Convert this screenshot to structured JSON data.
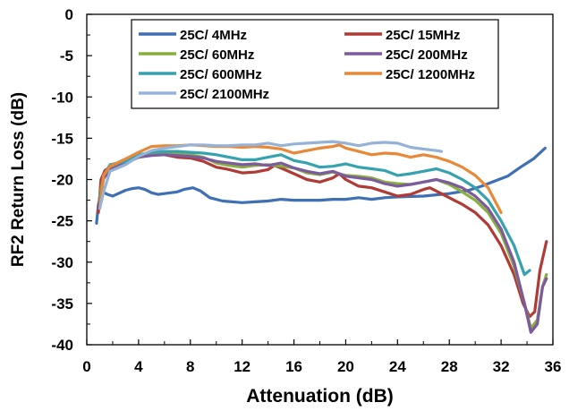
{
  "chart_data": {
    "type": "line",
    "xlabel": "Attenuation (dB)",
    "ylabel": "RF2 Return Loss (dB)",
    "xlim": [
      0,
      36
    ],
    "ylim": [
      -40,
      0
    ],
    "x_ticks": [
      "0",
      "4",
      "8",
      "12",
      "16",
      "20",
      "24",
      "28",
      "32",
      "36"
    ],
    "y_ticks": [
      "0",
      "-5",
      "-10",
      "-15",
      "-20",
      "-25",
      "-30",
      "-35",
      "-40"
    ],
    "grid": "none",
    "legend_position": "top-center",
    "series": [
      {
        "name": "25C/ 4MHz",
        "color": "#3F6FB5",
        "points": [
          [
            0.75,
            -25.3
          ],
          [
            0.9,
            -23.0
          ],
          [
            1.2,
            -21.5
          ],
          [
            1.6,
            -21.8
          ],
          [
            2,
            -22.0
          ],
          [
            3,
            -21.3
          ],
          [
            3.5,
            -21.1
          ],
          [
            4,
            -21.0
          ],
          [
            4.5,
            -21.2
          ],
          [
            5,
            -21.6
          ],
          [
            5.5,
            -21.8
          ],
          [
            6,
            -21.7
          ],
          [
            7,
            -21.5
          ],
          [
            7.5,
            -21.2
          ],
          [
            8.2,
            -21.0
          ],
          [
            8.8,
            -21.4
          ],
          [
            9.5,
            -22.2
          ],
          [
            10.5,
            -22.6
          ],
          [
            12,
            -22.8
          ],
          [
            13,
            -22.7
          ],
          [
            14,
            -22.6
          ],
          [
            15,
            -22.4
          ],
          [
            16,
            -22.5
          ],
          [
            18,
            -22.5
          ],
          [
            19,
            -22.4
          ],
          [
            20,
            -22.4
          ],
          [
            21,
            -22.2
          ],
          [
            22,
            -22.4
          ],
          [
            23,
            -22.2
          ],
          [
            24,
            -22.1
          ],
          [
            26,
            -22.0
          ],
          [
            28,
            -21.7
          ],
          [
            29.5,
            -21.3
          ],
          [
            30.5,
            -20.8
          ],
          [
            31.5,
            -20.2
          ],
          [
            32.5,
            -19.6
          ],
          [
            33.5,
            -18.5
          ],
          [
            34.5,
            -17.5
          ],
          [
            35.4,
            -16.2
          ]
        ]
      },
      {
        "name": "25C/ 15MHz",
        "color": "#B03A36",
        "points": [
          [
            0.9,
            -24.0
          ],
          [
            1.1,
            -20.0
          ],
          [
            1.4,
            -18.9
          ],
          [
            2,
            -18.3
          ],
          [
            3,
            -18.0
          ],
          [
            4,
            -17.3
          ],
          [
            5,
            -17.0
          ],
          [
            6,
            -17.0
          ],
          [
            7,
            -17.3
          ],
          [
            8,
            -17.4
          ],
          [
            9,
            -17.8
          ],
          [
            10,
            -18.5
          ],
          [
            11,
            -18.8
          ],
          [
            12,
            -19.2
          ],
          [
            13,
            -19.1
          ],
          [
            14,
            -18.8
          ],
          [
            14.5,
            -18.3
          ],
          [
            15,
            -18.6
          ],
          [
            16,
            -19.3
          ],
          [
            17,
            -20.0
          ],
          [
            18,
            -20.3
          ],
          [
            19,
            -19.8
          ],
          [
            19.5,
            -19.3
          ],
          [
            20,
            -20.0
          ],
          [
            21,
            -20.8
          ],
          [
            22,
            -21.0
          ],
          [
            23,
            -21.5
          ],
          [
            24,
            -22.0
          ],
          [
            25,
            -21.8
          ],
          [
            26,
            -21.2
          ],
          [
            26.5,
            -21.0
          ],
          [
            27,
            -21.4
          ],
          [
            28,
            -22.2
          ],
          [
            29,
            -23.0
          ],
          [
            30,
            -24.0
          ],
          [
            31,
            -25.5
          ],
          [
            32,
            -28.0
          ],
          [
            33,
            -31.5
          ],
          [
            33.7,
            -35.0
          ],
          [
            34.2,
            -36.6
          ],
          [
            34.6,
            -36.0
          ],
          [
            35,
            -31.0
          ],
          [
            35.5,
            -27.5
          ]
        ]
      },
      {
        "name": "25C/ 60MHz",
        "color": "#8AAE3E",
        "points": [
          [
            1.0,
            -22.0
          ],
          [
            1.3,
            -19.6
          ],
          [
            1.8,
            -18.6
          ],
          [
            3,
            -18.0
          ],
          [
            4,
            -17.3
          ],
          [
            5,
            -17.0
          ],
          [
            6,
            -16.9
          ],
          [
            7,
            -16.9
          ],
          [
            8,
            -17.0
          ],
          [
            9,
            -17.3
          ],
          [
            10,
            -18.0
          ],
          [
            11,
            -18.3
          ],
          [
            12,
            -18.5
          ],
          [
            13,
            -18.3
          ],
          [
            14,
            -18.2
          ],
          [
            15,
            -18.4
          ],
          [
            16,
            -18.6
          ],
          [
            17,
            -19.2
          ],
          [
            18,
            -19.4
          ],
          [
            19,
            -19.1
          ],
          [
            20,
            -19.5
          ],
          [
            21,
            -19.6
          ],
          [
            22,
            -19.8
          ],
          [
            23,
            -20.3
          ],
          [
            24,
            -20.5
          ],
          [
            25,
            -20.6
          ],
          [
            26,
            -20.3
          ],
          [
            27,
            -20.0
          ],
          [
            28,
            -20.6
          ],
          [
            29,
            -21.5
          ],
          [
            30,
            -22.5
          ],
          [
            31,
            -24.0
          ],
          [
            32,
            -26.5
          ],
          [
            33,
            -30.5
          ],
          [
            33.8,
            -35.0
          ],
          [
            34.3,
            -38.0
          ],
          [
            34.8,
            -37.0
          ],
          [
            35.2,
            -33.0
          ],
          [
            35.5,
            -31.5
          ]
        ]
      },
      {
        "name": "25C/ 200MHz",
        "color": "#7B5A9E",
        "points": [
          [
            1.0,
            -22.5
          ],
          [
            1.3,
            -19.9
          ],
          [
            1.8,
            -18.8
          ],
          [
            3,
            -18.0
          ],
          [
            4,
            -17.3
          ],
          [
            5,
            -17.1
          ],
          [
            6,
            -17.0
          ],
          [
            7,
            -17.1
          ],
          [
            8,
            -17.2
          ],
          [
            9,
            -17.4
          ],
          [
            10,
            -17.8
          ],
          [
            11,
            -18.0
          ],
          [
            12,
            -18.2
          ],
          [
            13,
            -18.1
          ],
          [
            14,
            -18.3
          ],
          [
            15,
            -18.0
          ],
          [
            16,
            -18.6
          ],
          [
            17,
            -19.0
          ],
          [
            18,
            -19.3
          ],
          [
            19,
            -19.0
          ],
          [
            20,
            -19.6
          ],
          [
            21,
            -19.8
          ],
          [
            22,
            -20.0
          ],
          [
            23,
            -20.5
          ],
          [
            24,
            -20.8
          ],
          [
            25,
            -20.6
          ],
          [
            26,
            -20.3
          ],
          [
            27,
            -20.0
          ],
          [
            28,
            -20.4
          ],
          [
            29,
            -21.0
          ],
          [
            30,
            -22.0
          ],
          [
            31,
            -23.5
          ],
          [
            32,
            -26.0
          ],
          [
            33,
            -30.0
          ],
          [
            33.8,
            -35.0
          ],
          [
            34.3,
            -38.5
          ],
          [
            34.8,
            -37.5
          ],
          [
            35.2,
            -33.0
          ],
          [
            35.5,
            -32.0
          ]
        ]
      },
      {
        "name": "25C/ 600MHz",
        "color": "#36A2B0",
        "points": [
          [
            1.0,
            -23.0
          ],
          [
            1.3,
            -19.5
          ],
          [
            1.8,
            -18.2
          ],
          [
            3,
            -17.8
          ],
          [
            4,
            -17.0
          ],
          [
            5,
            -16.7
          ],
          [
            6,
            -16.6
          ],
          [
            7,
            -16.6
          ],
          [
            8,
            -16.7
          ],
          [
            9,
            -16.8
          ],
          [
            10,
            -17.0
          ],
          [
            11,
            -17.3
          ],
          [
            12,
            -17.6
          ],
          [
            13,
            -17.6
          ],
          [
            14,
            -17.3
          ],
          [
            15,
            -17.0
          ],
          [
            16,
            -17.7
          ],
          [
            17,
            -18.0
          ],
          [
            18,
            -18.5
          ],
          [
            19,
            -18.4
          ],
          [
            20,
            -18.1
          ],
          [
            21,
            -18.5
          ],
          [
            22,
            -18.7
          ],
          [
            23,
            -18.9
          ],
          [
            24,
            -19.5
          ],
          [
            25,
            -19.3
          ],
          [
            26,
            -19.0
          ],
          [
            27,
            -18.7
          ],
          [
            28,
            -19.2
          ],
          [
            29,
            -20.0
          ],
          [
            30,
            -21.0
          ],
          [
            31,
            -22.5
          ],
          [
            32,
            -25.0
          ],
          [
            33,
            -28.0
          ],
          [
            33.8,
            -31.5
          ],
          [
            34.2,
            -31.0
          ]
        ]
      },
      {
        "name": "25C/ 1200MHz",
        "color": "#E8893A",
        "points": [
          [
            1.0,
            -23.5
          ],
          [
            1.3,
            -19.5
          ],
          [
            1.8,
            -18.4
          ],
          [
            3,
            -17.5
          ],
          [
            4,
            -16.7
          ],
          [
            5,
            -16.0
          ],
          [
            6,
            -15.9
          ],
          [
            7,
            -15.9
          ],
          [
            8,
            -15.8
          ],
          [
            9,
            -15.9
          ],
          [
            10,
            -16.0
          ],
          [
            11,
            -16.0
          ],
          [
            12,
            -16.1
          ],
          [
            13,
            -16.0
          ],
          [
            14,
            -16.1
          ],
          [
            15,
            -16.3
          ],
          [
            16,
            -16.8
          ],
          [
            17,
            -16.5
          ],
          [
            18,
            -16.2
          ],
          [
            19,
            -16.0
          ],
          [
            19.5,
            -15.8
          ],
          [
            20,
            -16.2
          ],
          [
            21,
            -16.6
          ],
          [
            22,
            -17.0
          ],
          [
            23,
            -16.8
          ],
          [
            24,
            -16.9
          ],
          [
            25,
            -17.3
          ],
          [
            26,
            -17.0
          ],
          [
            27,
            -17.3
          ],
          [
            28,
            -17.8
          ],
          [
            29,
            -18.5
          ],
          [
            30,
            -19.5
          ],
          [
            31,
            -21.0
          ],
          [
            32,
            -24.0
          ]
        ]
      },
      {
        "name": "25C/ 2100MHz",
        "color": "#95B3D7",
        "points": [
          [
            1.0,
            -23.5
          ],
          [
            1.3,
            -21.5
          ],
          [
            1.8,
            -19.0
          ],
          [
            3,
            -18.2
          ],
          [
            4,
            -17.2
          ],
          [
            5,
            -16.5
          ],
          [
            6,
            -16.2
          ],
          [
            7,
            -16.0
          ],
          [
            8,
            -15.8
          ],
          [
            9,
            -15.8
          ],
          [
            10,
            -15.9
          ],
          [
            11,
            -15.9
          ],
          [
            12,
            -15.8
          ],
          [
            13,
            -15.8
          ],
          [
            14,
            -15.6
          ],
          [
            15,
            -15.9
          ],
          [
            16,
            -15.7
          ],
          [
            17,
            -15.6
          ],
          [
            18,
            -15.5
          ],
          [
            19,
            -15.4
          ],
          [
            20,
            -15.6
          ],
          [
            21,
            -15.9
          ],
          [
            22,
            -15.6
          ],
          [
            23,
            -15.5
          ],
          [
            24,
            -15.6
          ],
          [
            25,
            -16.1
          ],
          [
            26,
            -16.3
          ],
          [
            27,
            -16.5
          ],
          [
            27.4,
            -16.6
          ]
        ]
      }
    ]
  }
}
